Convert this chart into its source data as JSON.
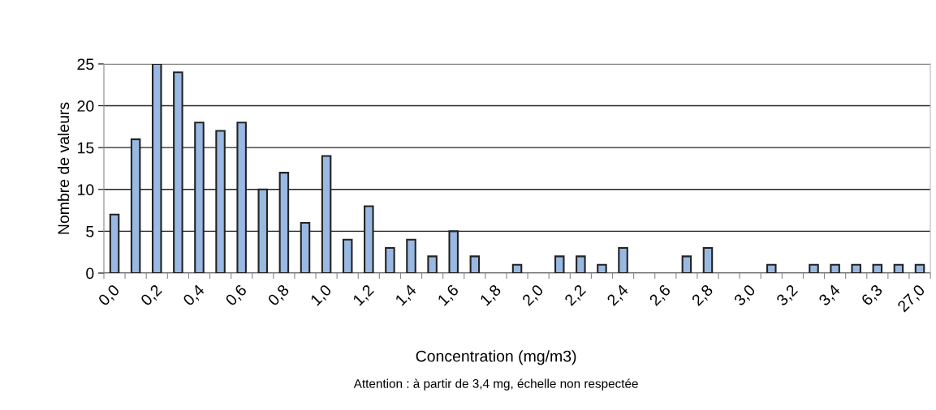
{
  "chart_data": {
    "type": "bar",
    "xlabel": "Concentration (mg/m3)",
    "ylabel": "Nombre de valeurs",
    "annotations": [
      "Attention : à partir de 3,4 mg, échelle non respectée"
    ],
    "categories": [
      "0,0",
      null,
      "0,2",
      null,
      "0,4",
      null,
      "0,6",
      null,
      "0,8",
      null,
      "1,0",
      null,
      "1,2",
      null,
      "1,4",
      null,
      "1,6",
      null,
      "1,8",
      null,
      "2,0",
      null,
      "2,2",
      null,
      "2,4",
      null,
      "2,6",
      null,
      "2,8",
      null,
      "3,0",
      null,
      "3,2",
      null,
      "3,4",
      null,
      "6,3",
      null,
      "27,0"
    ],
    "values": [
      7,
      16,
      25,
      24,
      18,
      17,
      18,
      10,
      12,
      6,
      14,
      4,
      8,
      3,
      4,
      2,
      5,
      2,
      0,
      1,
      0,
      2,
      2,
      1,
      3,
      0,
      0,
      2,
      3,
      0,
      0,
      1,
      0,
      1,
      1,
      1,
      1,
      1,
      1
    ],
    "color": "#99b9e3",
    "ylim": [
      0,
      25
    ],
    "yticks": [
      0,
      5,
      10,
      15,
      20,
      25
    ],
    "grid": "y"
  }
}
